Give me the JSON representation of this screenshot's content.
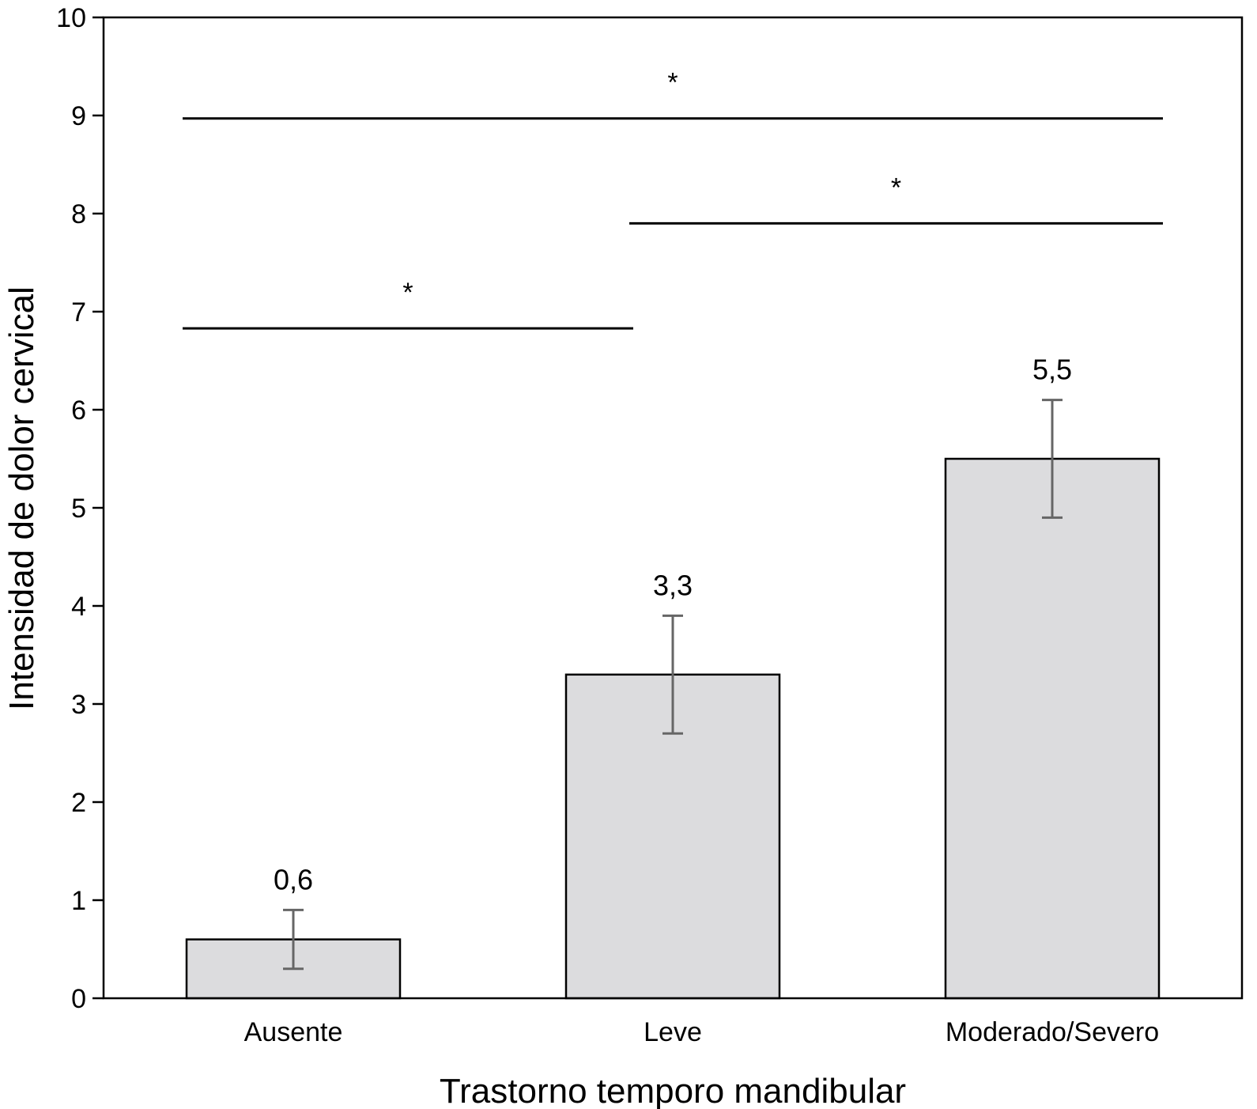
{
  "chart_data": {
    "type": "bar",
    "title": "",
    "xlabel": "Trastorno temporo mandibular",
    "ylabel": "Intensidad de dolor cervical",
    "categories": [
      "Ausente",
      "Leve",
      "Moderado/Severo"
    ],
    "values": [
      0.6,
      3.3,
      5.5
    ],
    "value_labels": [
      "0,6",
      "3,3",
      "5,5"
    ],
    "error_low": [
      0.3,
      2.7,
      4.9
    ],
    "error_high": [
      0.9,
      3.9,
      6.1
    ],
    "ylim": [
      0,
      10
    ],
    "yticks": [
      0,
      1,
      2,
      3,
      4,
      5,
      6,
      7,
      8,
      9,
      10
    ],
    "ytick_labels": [
      "0",
      "1",
      "2",
      "3",
      "4",
      "5",
      "6",
      "7",
      "8",
      "9",
      "10"
    ],
    "grid": false,
    "colors": {
      "bar_fill": "#dcdcde",
      "bar_stroke": "#000000",
      "error_bar": "#666666",
      "axis": "#000000"
    },
    "significance": [
      {
        "from": 0,
        "to": 2,
        "y": 8.97,
        "label": "*"
      },
      {
        "from": 1,
        "to": 2,
        "y": 7.9,
        "label": "*"
      },
      {
        "from": 0,
        "to": 1,
        "y": 6.83,
        "label": "*"
      }
    ]
  }
}
